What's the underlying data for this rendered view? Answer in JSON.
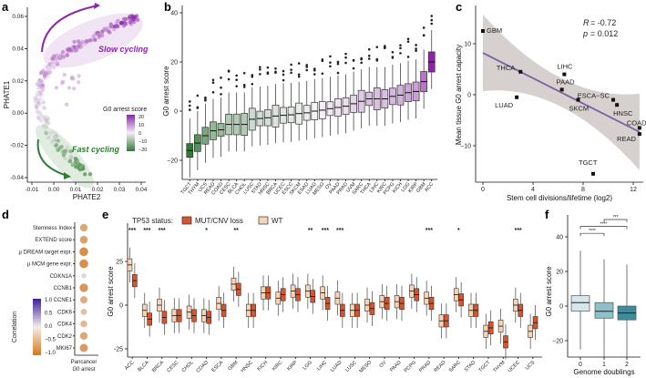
{
  "panel_labels": {
    "a": "a",
    "b": "b",
    "c": "c",
    "d": "d",
    "e": "e",
    "f": "f"
  },
  "chart_data": [
    {
      "id": "a",
      "type": "scatter",
      "xlabel": "PHATE2",
      "ylabel": "PHATE1",
      "xlim": [
        -0.012,
        0.042
      ],
      "ylim": [
        -0.042,
        0.064
      ],
      "xticks": [
        "-0.01",
        "0.00",
        "0.01",
        "0.02",
        "0.03",
        "0.04"
      ],
      "xtick_values": [
        -0.01,
        0,
        0.01,
        0.02,
        0.03,
        0.04
      ],
      "yticks": [
        "0.06",
        "0.04",
        "0.02",
        "0.00",
        "-0.02",
        "-0.04"
      ],
      "ytick_values": [
        0.06,
        0.04,
        0.02,
        0,
        -0.02,
        -0.04
      ],
      "trajectory": [
        [
          0.015,
          -0.037,
          -18
        ],
        [
          0.01,
          -0.031,
          -14
        ],
        [
          0.004,
          -0.022,
          -10
        ],
        [
          -0.002,
          -0.012,
          -5
        ],
        [
          -0.005,
          -0.002,
          0
        ],
        [
          -0.007,
          0.008,
          3
        ],
        [
          -0.006,
          0.018,
          6
        ],
        [
          -0.003,
          0.027,
          8
        ],
        [
          0.003,
          0.035,
          10
        ],
        [
          0.012,
          0.043,
          12
        ],
        [
          0.022,
          0.05,
          14
        ],
        [
          0.032,
          0.056,
          16
        ],
        [
          0.039,
          0.06,
          18
        ]
      ],
      "annotations": {
        "slow": "Slow cycling",
        "fast": "Fast cycling"
      },
      "legend": {
        "title": "G0 arrest score",
        "ticks": [
          "20",
          "10",
          "0",
          "−10",
          "−20"
        ]
      },
      "colors": {
        "high": "#8e24aa",
        "mid": "#f3eef5",
        "low": "#2e7d32"
      }
    },
    {
      "id": "b",
      "type": "box",
      "ylabel": "G0 arrest score",
      "ylim": [
        -28,
        44
      ],
      "yticks": [
        "40",
        "20",
        "0",
        "−20"
      ],
      "ytick_values": [
        40,
        20,
        0,
        -20
      ],
      "categories": [
        "TGCT",
        "THYM",
        "UCS",
        "READ",
        "COAD",
        "CESC",
        "BLCA",
        "CHOL",
        "LUSC",
        "STAD",
        "HNSC",
        "BRCA",
        "UCEC",
        "ESCC",
        "SKCM",
        "ESAD",
        "LUAD",
        "MESO",
        "OV",
        "PAAD",
        "PRAD",
        "UVM",
        "SARC",
        "THCA",
        "LIHC",
        "KIRC",
        "PCPG",
        "KICH",
        "LGG",
        "KIRP",
        "GBM",
        "ACC"
      ],
      "medians": [
        -16,
        -13,
        -10,
        -8,
        -7.6,
        -5.4,
        -5.4,
        -5.4,
        -3.3,
        -3,
        -2.7,
        -2,
        -1.7,
        -1.5,
        -1,
        -0.7,
        0,
        0.4,
        1,
        1.5,
        2,
        3,
        4,
        5,
        5,
        5,
        6,
        6.5,
        7.5,
        8,
        12,
        20
      ]
    },
    {
      "id": "c",
      "type": "scatter",
      "xlabel": "Stem cell divisions/lifetime (log2)",
      "ylabel": "Mean tissue G0 arrest capacity",
      "xlim": [
        -0.5,
        13
      ],
      "ylim": [
        -17,
        16
      ],
      "xticks": [
        "0",
        "4",
        "8",
        "12"
      ],
      "xtick_values": [
        0,
        4,
        8,
        12
      ],
      "yticks": [
        "10",
        "0",
        "−10"
      ],
      "ytick_values": [
        10,
        0,
        -10
      ],
      "points": [
        {
          "label": "GBM",
          "x": 0,
          "y": 12.5
        },
        {
          "label": "THCA",
          "x": 3,
          "y": 4.5
        },
        {
          "label": "LUAD",
          "x": 2.7,
          "y": -0.5
        },
        {
          "label": "LIHC",
          "x": 6.5,
          "y": 4
        },
        {
          "label": "PAAD",
          "x": 6.3,
          "y": 1
        },
        {
          "label": "SKCM",
          "x": 7.6,
          "y": -1
        },
        {
          "label": "ESCA−SC",
          "x": 10.4,
          "y": -1
        },
        {
          "label": "HNSC",
          "x": 10.7,
          "y": -2
        },
        {
          "label": "COAD",
          "x": 12.5,
          "y": -6.5
        },
        {
          "label": "READ",
          "x": 12.5,
          "y": -7.7
        },
        {
          "label": "TGCT",
          "x": 8.8,
          "y": -15.5
        }
      ],
      "fit": {
        "x0": 0,
        "y0": 8.2,
        "x1": 12.5,
        "y1": -7.3,
        "ci_halfwidth_ends": 7.5,
        "ci_halfwidth_mid": 2.8
      },
      "stats": {
        "R_label": "R",
        "R_value": "= -0.72",
        "p_label": "p",
        "p_value": "= 0.012"
      },
      "colors": {
        "line": "#7d5fa0",
        "band": "#d6d0cf"
      }
    },
    {
      "id": "d",
      "type": "dot",
      "xlabel_line1": "Pancancer",
      "xlabel_line2": "G0 arrest",
      "rows": [
        {
          "label": "Stemness Index",
          "r": -0.6
        },
        {
          "label": "EXTEND score",
          "r": -0.65
        },
        {
          "label": "µ DREAM target expr.",
          "r": -0.8
        },
        {
          "label": "µ MCM gene expr.",
          "r": -0.8
        },
        {
          "label": "CDKN1A",
          "r": 0.1
        },
        {
          "label": "CCNB1",
          "r": -0.75
        },
        {
          "label": "CCNE1",
          "r": -0.55
        },
        {
          "label": "CDK6",
          "r": -0.35
        },
        {
          "label": "CDK4",
          "r": -0.45
        },
        {
          "label": "CDK2",
          "r": -0.6
        },
        {
          "label": "MKI67",
          "r": -0.7
        }
      ],
      "legend": {
        "title": "Correlation",
        "ticks": [
          "1.0",
          "0.5",
          "0.0",
          "−0.5",
          "−1.0"
        ]
      }
    },
    {
      "id": "e",
      "type": "box",
      "ylabel": "G0 arrest score",
      "ylim": [
        -29,
        45
      ],
      "yticks": [
        "25",
        "0",
        "-25"
      ],
      "ytick_values": [
        25,
        0,
        -25
      ],
      "legend": {
        "title": "TP53 status:",
        "mut": "MUT/CNV loss",
        "wt": "WT"
      },
      "colors": {
        "mut": "#d9542b",
        "wt": "#f6d5b7"
      },
      "categories": [
        "ACC",
        "BLCA",
        "BRCA",
        "CESC",
        "CHOL",
        "COAD",
        "ESCA",
        "GBM",
        "HNSC",
        "KICH",
        "KIRC",
        "KIRP",
        "LGG",
        "LIHC",
        "LUAD",
        "LUSC",
        "MESO",
        "OV",
        "PAAD",
        "PCPG",
        "PRAD",
        "READ",
        "SARC",
        "STAD",
        "TGCT",
        "THYM",
        "UCEC",
        "UCS"
      ],
      "wt_medians": [
        23,
        -3,
        0,
        -6,
        -4,
        -6,
        1,
        12,
        -3,
        7,
        4,
        8,
        8,
        7,
        4,
        -3,
        0,
        2,
        2,
        8,
        4,
        -9,
        6,
        -3,
        -15,
        -12,
        0,
        -15
      ],
      "mut_medians": [
        14,
        -8,
        -7,
        -6,
        -6,
        -7,
        -3,
        9,
        -3,
        7,
        6,
        6,
        5,
        1,
        -3,
        -3,
        -2,
        1,
        1,
        6,
        1,
        -9,
        3,
        -3,
        -13,
        -21,
        -3,
        -10
      ],
      "significance": [
        "***",
        "***",
        "***",
        "",
        "",
        "*",
        "",
        "**",
        "",
        "",
        "",
        "",
        "**",
        "***",
        "***",
        "",
        "",
        "",
        "",
        "",
        "***",
        "",
        "*",
        "",
        "",
        "",
        "***",
        ""
      ]
    },
    {
      "id": "f",
      "type": "box",
      "xlabel": "Genome doublings",
      "ylabel": "G0 arrest score",
      "ylim": [
        -28,
        54
      ],
      "xticks": [
        "0",
        "1",
        "2"
      ],
      "yticks": [
        "40",
        "20",
        "0",
        "−20"
      ],
      "ytick_values": [
        40,
        20,
        0,
        -20
      ],
      "boxes": [
        {
          "q1": -3,
          "median": 2,
          "q3": 6,
          "lo": -15,
          "hi": 22,
          "color": "#d5e6ec"
        },
        {
          "q1": -7,
          "median": -3,
          "q3": 2,
          "lo": -20,
          "hi": 17,
          "color": "#8fbfc9"
        },
        {
          "q1": -8,
          "median": -4,
          "q3": 0,
          "lo": -20,
          "hi": 14,
          "color": "#3f8b9a"
        }
      ],
      "brackets": [
        {
          "from": 0,
          "to": 1,
          "y": 42,
          "label": "****"
        },
        {
          "from": 0,
          "to": 2,
          "y": 46,
          "label": "****"
        },
        {
          "from": 1,
          "to": 2,
          "y": 50,
          "label": "***"
        }
      ]
    }
  ]
}
